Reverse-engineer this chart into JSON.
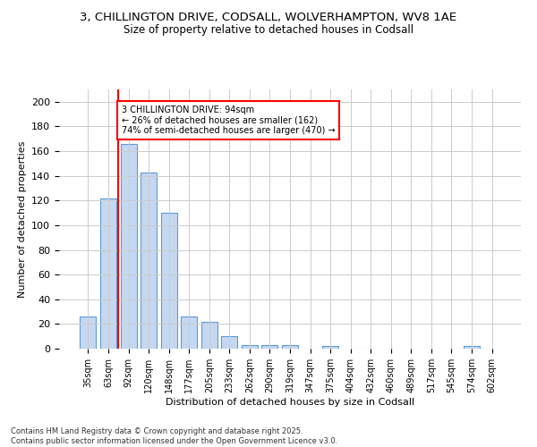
{
  "title_line1": "3, CHILLINGTON DRIVE, CODSALL, WOLVERHAMPTON, WV8 1AE",
  "title_line2": "Size of property relative to detached houses in Codsall",
  "xlabel": "Distribution of detached houses by size in Codsall",
  "ylabel": "Number of detached properties",
  "bar_labels": [
    "35sqm",
    "63sqm",
    "92sqm",
    "120sqm",
    "148sqm",
    "177sqm",
    "205sqm",
    "233sqm",
    "262sqm",
    "290sqm",
    "319sqm",
    "347sqm",
    "375sqm",
    "404sqm",
    "432sqm",
    "460sqm",
    "489sqm",
    "517sqm",
    "545sqm",
    "574sqm",
    "602sqm"
  ],
  "bar_values": [
    26,
    122,
    166,
    143,
    110,
    26,
    22,
    10,
    3,
    3,
    3,
    0,
    2,
    0,
    0,
    0,
    0,
    0,
    0,
    2,
    0
  ],
  "bar_color": "#c5d8f0",
  "bar_edge_color": "#5b9bd5",
  "red_line_index": 2,
  "annotation_text": "3 CHILLINGTON DRIVE: 94sqm\n← 26% of detached houses are smaller (162)\n74% of semi-detached houses are larger (470) →",
  "annotation_box_color": "white",
  "annotation_box_edge_color": "red",
  "ylim": [
    0,
    210
  ],
  "yticks": [
    0,
    20,
    40,
    60,
    80,
    100,
    120,
    140,
    160,
    180,
    200
  ],
  "footer_line1": "Contains HM Land Registry data © Crown copyright and database right 2025.",
  "footer_line2": "Contains public sector information licensed under the Open Government Licence v3.0.",
  "background_color": "white",
  "grid_color": "#cccccc"
}
